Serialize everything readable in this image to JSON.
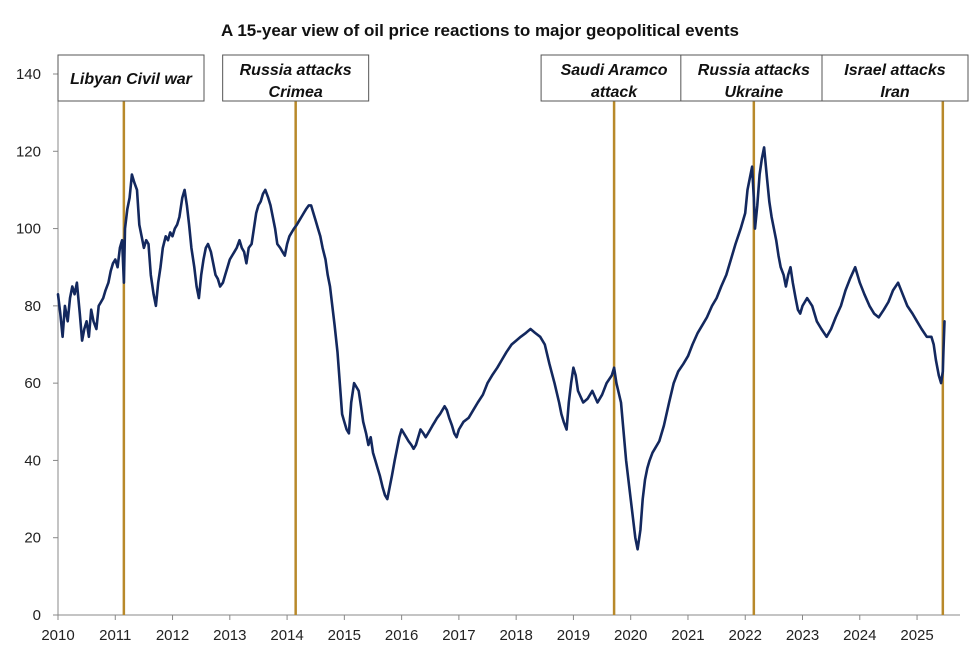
{
  "chart_data": {
    "type": "line",
    "title": "A 15-year view of oil price reactions to major geopolitical events",
    "xlabel": "",
    "ylabel": "",
    "xlim": [
      2010,
      2025.75
    ],
    "ylim": [
      0,
      140
    ],
    "y_ticks": [
      0,
      20,
      40,
      60,
      80,
      100,
      120,
      140
    ],
    "x_ticks": [
      2010,
      2011,
      2012,
      2013,
      2014,
      2015,
      2016,
      2017,
      2018,
      2019,
      2020,
      2021,
      2022,
      2023,
      2024,
      2025
    ],
    "grid": false,
    "line_color": "#13285e",
    "event_line_color": "#b8892a",
    "events": [
      {
        "label": [
          "Libyan Civil war"
        ],
        "x": 2011.15
      },
      {
        "label": [
          "Russia attacks",
          "Crimea"
        ],
        "x": 2014.15
      },
      {
        "label": [
          "Saudi Aramco",
          "attack"
        ],
        "x": 2019.71
      },
      {
        "label": [
          "Russia attacks",
          "Ukraine"
        ],
        "x": 2022.15
      },
      {
        "label": [
          "Israel attacks",
          "Iran"
        ],
        "x": 2025.45
      }
    ],
    "series": [
      {
        "x": [
          2010.0,
          2010.04,
          2010.08,
          2010.12,
          2010.17,
          2010.21,
          2010.25,
          2010.29,
          2010.33,
          2010.38,
          2010.42,
          2010.46,
          2010.5,
          2010.54,
          2010.58,
          2010.62,
          2010.67,
          2010.71,
          2010.75,
          2010.79,
          2010.83,
          2010.88,
          2010.92,
          2010.96,
          2011.0,
          2011.04,
          2011.08,
          2011.12,
          2011.15,
          2011.17,
          2011.21,
          2011.25,
          2011.29,
          2011.33,
          2011.38,
          2011.42,
          2011.46,
          2011.5,
          2011.54,
          2011.58,
          2011.62,
          2011.67,
          2011.71,
          2011.75,
          2011.79,
          2011.83,
          2011.88,
          2011.92,
          2011.96,
          2012.0,
          2012.04,
          2012.08,
          2012.12,
          2012.17,
          2012.21,
          2012.25,
          2012.29,
          2012.33,
          2012.38,
          2012.42,
          2012.46,
          2012.5,
          2012.54,
          2012.58,
          2012.62,
          2012.67,
          2012.71,
          2012.75,
          2012.79,
          2012.83,
          2012.88,
          2012.92,
          2012.96,
          2013.0,
          2013.04,
          2013.08,
          2013.12,
          2013.17,
          2013.21,
          2013.25,
          2013.29,
          2013.33,
          2013.38,
          2013.42,
          2013.46,
          2013.5,
          2013.54,
          2013.58,
          2013.62,
          2013.67,
          2013.71,
          2013.75,
          2013.79,
          2013.83,
          2013.88,
          2013.92,
          2013.96,
          2014.0,
          2014.04,
          2014.08,
          2014.12,
          2014.17,
          2014.21,
          2014.25,
          2014.29,
          2014.33,
          2014.38,
          2014.42,
          2014.46,
          2014.5,
          2014.54,
          2014.58,
          2014.62,
          2014.67,
          2014.71,
          2014.75,
          2014.79,
          2014.83,
          2014.88,
          2014.92,
          2014.96,
          2015.0,
          2015.04,
          2015.08,
          2015.12,
          2015.17,
          2015.21,
          2015.25,
          2015.29,
          2015.33,
          2015.38,
          2015.42,
          2015.46,
          2015.5,
          2015.54,
          2015.58,
          2015.62,
          2015.67,
          2015.71,
          2015.75,
          2015.79,
          2015.83,
          2015.88,
          2015.92,
          2015.96,
          2016.0,
          2016.04,
          2016.08,
          2016.12,
          2016.17,
          2016.21,
          2016.25,
          2016.29,
          2016.33,
          2016.38,
          2016.42,
          2016.46,
          2016.5,
          2016.54,
          2016.58,
          2016.62,
          2016.67,
          2016.71,
          2016.75,
          2016.79,
          2016.83,
          2016.88,
          2016.92,
          2016.96,
          2017.0,
          2017.08,
          2017.17,
          2017.25,
          2017.33,
          2017.42,
          2017.5,
          2017.58,
          2017.67,
          2017.75,
          2017.83,
          2017.92,
          2018.0,
          2018.08,
          2018.17,
          2018.25,
          2018.33,
          2018.42,
          2018.5,
          2018.58,
          2018.67,
          2018.75,
          2018.79,
          2018.83,
          2018.88,
          2018.92,
          2018.96,
          2019.0,
          2019.04,
          2019.08,
          2019.17,
          2019.25,
          2019.33,
          2019.42,
          2019.5,
          2019.58,
          2019.67,
          2019.71,
          2019.75,
          2019.83,
          2019.92,
          2020.0,
          2020.04,
          2020.08,
          2020.12,
          2020.17,
          2020.21,
          2020.25,
          2020.29,
          2020.33,
          2020.38,
          2020.42,
          2020.5,
          2020.58,
          2020.67,
          2020.75,
          2020.83,
          2020.92,
          2021.0,
          2021.08,
          2021.17,
          2021.25,
          2021.33,
          2021.42,
          2021.5,
          2021.58,
          2021.67,
          2021.75,
          2021.83,
          2021.92,
          2022.0,
          2022.04,
          2022.08,
          2022.12,
          2022.15,
          2022.17,
          2022.21,
          2022.25,
          2022.29,
          2022.33,
          2022.38,
          2022.42,
          2022.46,
          2022.5,
          2022.54,
          2022.58,
          2022.62,
          2022.67,
          2022.71,
          2022.75,
          2022.79,
          2022.83,
          2022.88,
          2022.92,
          2022.96,
          2023.0,
          2023.08,
          2023.17,
          2023.25,
          2023.33,
          2023.42,
          2023.5,
          2023.58,
          2023.67,
          2023.75,
          2023.83,
          2023.92,
          2024.0,
          2024.08,
          2024.17,
          2024.25,
          2024.33,
          2024.42,
          2024.5,
          2024.58,
          2024.67,
          2024.75,
          2024.83,
          2024.92,
          2025.0,
          2025.08,
          2025.17,
          2025.25,
          2025.29,
          2025.33,
          2025.38,
          2025.42,
          2025.45,
          2025.46,
          2025.48
        ],
        "values": [
          83,
          78,
          72,
          80,
          76,
          82,
          85,
          83,
          86,
          78,
          71,
          74,
          76,
          72,
          79,
          76,
          74,
          80,
          81,
          82,
          84,
          86,
          89,
          91,
          92,
          90,
          95,
          97,
          86,
          100,
          105,
          108,
          114,
          112,
          110,
          101,
          98,
          95,
          97,
          96,
          88,
          83,
          80,
          86,
          90,
          95,
          98,
          97,
          99,
          98,
          100,
          101,
          103,
          108,
          110,
          106,
          101,
          95,
          90,
          85,
          82,
          88,
          92,
          95,
          96,
          94,
          91,
          88,
          87,
          85,
          86,
          88,
          90,
          92,
          93,
          94,
          95,
          97,
          95,
          94,
          91,
          95,
          96,
          100,
          104,
          106,
          107,
          109,
          110,
          108,
          106,
          103,
          100,
          96,
          95,
          94,
          93,
          96,
          98,
          99,
          100,
          101,
          102,
          103,
          104,
          105,
          106,
          106,
          104,
          102,
          100,
          98,
          95,
          92,
          88,
          85,
          80,
          75,
          68,
          60,
          52,
          50,
          48,
          47,
          55,
          60,
          59,
          58,
          54,
          50,
          47,
          44,
          46,
          42,
          40,
          38,
          36,
          33,
          31,
          30,
          33,
          36,
          40,
          43,
          46,
          48,
          47,
          46,
          45,
          44,
          43,
          44,
          46,
          48,
          47,
          46,
          47,
          48,
          49,
          50,
          51,
          52,
          53,
          54,
          53,
          51,
          49,
          47,
          46,
          48,
          50,
          51,
          53,
          55,
          57,
          60,
          62,
          64,
          66,
          68,
          70,
          71,
          72,
          73,
          74,
          73,
          72,
          70,
          65,
          60,
          55,
          52,
          50,
          48,
          55,
          60,
          64,
          62,
          58,
          55,
          56,
          58,
          55,
          57,
          60,
          62,
          64,
          60,
          55,
          40,
          30,
          25,
          20,
          17,
          22,
          30,
          35,
          38,
          40,
          42,
          43,
          45,
          49,
          55,
          60,
          63,
          65,
          67,
          70,
          73,
          75,
          77,
          80,
          82,
          85,
          88,
          92,
          96,
          100,
          104,
          110,
          113,
          116,
          108,
          100,
          106,
          114,
          118,
          121,
          113,
          107,
          103,
          100,
          97,
          93,
          90,
          88,
          85,
          88,
          90,
          86,
          82,
          79,
          78,
          80,
          82,
          80,
          76,
          74,
          72,
          74,
          77,
          80,
          84,
          87,
          90,
          86,
          83,
          80,
          78,
          77,
          79,
          81,
          84,
          86,
          83,
          80,
          78,
          76,
          74,
          72,
          72,
          70,
          66,
          62,
          60,
          63,
          68,
          76
        ]
      }
    ]
  }
}
